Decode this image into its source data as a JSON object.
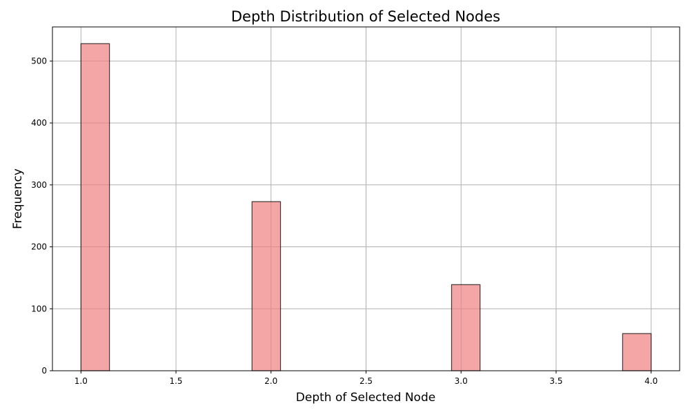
{
  "chart_data": {
    "type": "bar",
    "title": "Depth Distribution of Selected Nodes",
    "xlabel": "Depth of Selected Node",
    "ylabel": "Frequency",
    "xlim": [
      0.85,
      4.15
    ],
    "ylim": [
      0,
      555
    ],
    "x_ticks": [
      1.0,
      1.5,
      2.0,
      2.5,
      3.0,
      3.5,
      4.0
    ],
    "x_tick_labels": [
      "1.0",
      "1.5",
      "2.0",
      "2.5",
      "3.0",
      "3.5",
      "4.0"
    ],
    "y_ticks": [
      0,
      100,
      200,
      300,
      400,
      500
    ],
    "y_tick_labels": [
      "0",
      "100",
      "200",
      "300",
      "400",
      "500"
    ],
    "grid": true,
    "legend": "none",
    "bins": [
      {
        "start": 1.0,
        "end": 1.15,
        "value": 528
      },
      {
        "start": 1.9,
        "end": 2.05,
        "value": 273
      },
      {
        "start": 2.95,
        "end": 3.1,
        "value": 139
      },
      {
        "start": 3.85,
        "end": 4.0,
        "value": 60
      }
    ],
    "colors": {
      "bar_fill": "#f08080",
      "bar_edge": "#000000",
      "grid": "#b0b0b0"
    }
  }
}
